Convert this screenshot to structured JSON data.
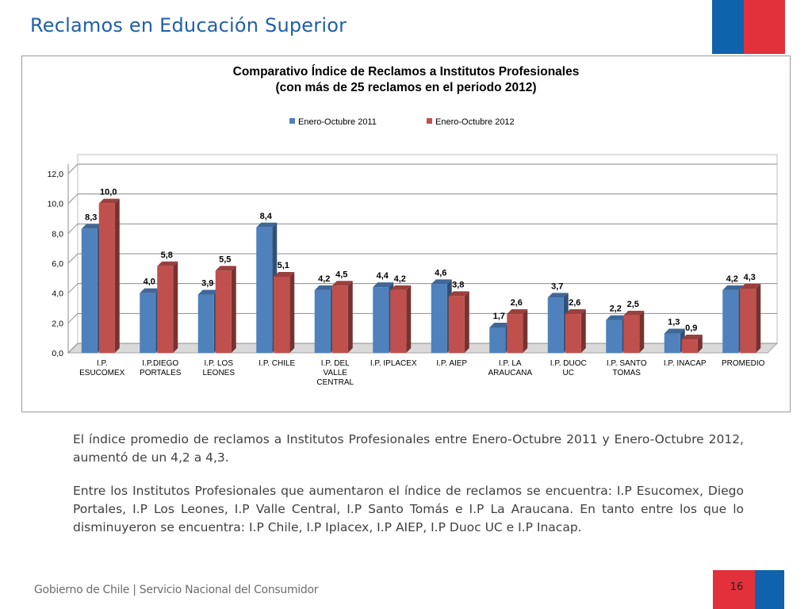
{
  "slide": {
    "title": "Reclamos en Educación Superior",
    "paragraph1": "El índice promedio de reclamos a Institutos Profesionales entre Enero-Octubre 2011 y Enero-Octubre 2012, aumentó de un 4,2 a 4,3.",
    "paragraph2": "Entre los Institutos Profesionales que aumentaron el índice de reclamos se encuentra: I.P Esucomex, Diego Portales, I.P Los Leones, I.P Valle Central, I.P Santo Tomás e I.P La Araucana. En tanto entre los que lo disminuyeron se encuentra: I.P Chile, I.P Iplacex, I.P AIEP, I.P Duoc UC e I.P Inacap.",
    "footer": "Gobierno de Chile | Servicio Nacional del Consumidor",
    "page_number": "16"
  },
  "colors": {
    "blue_flag": "#0f62ac",
    "red_flag": "#e2313b",
    "title": "#1f5fa8"
  },
  "chart_data": {
    "type": "bar",
    "title": "Comparativo Índice de Reclamos a Institutos Profesionales",
    "subtitle": "(con más de 25 reclamos en el periodo 2012)",
    "categories": [
      [
        "I.P.",
        "ESUCOMEX"
      ],
      [
        "I.P.DIEGO",
        "PORTALES"
      ],
      [
        "I.P. LOS",
        "LEONES"
      ],
      [
        "I.P. CHILE"
      ],
      [
        "I.P. DEL",
        "VALLE",
        "CENTRAL"
      ],
      [
        "I.P. IPLACEX"
      ],
      [
        "I.P. AIEP"
      ],
      [
        "I.P. LA",
        "ARAUCANA"
      ],
      [
        "I.P. DUOC",
        "UC"
      ],
      [
        "I.P. SANTO",
        "TOMAS"
      ],
      [
        "I.P. INACAP"
      ],
      [
        "PROMEDIO"
      ]
    ],
    "series": [
      {
        "name": "Enero-Octubre 2011",
        "color": "#4f81bd",
        "values": [
          8.3,
          4.0,
          3.9,
          8.4,
          4.2,
          4.4,
          4.6,
          1.7,
          3.7,
          2.2,
          1.3,
          4.2
        ],
        "labels": [
          "8,3",
          "4,0",
          "3,9",
          "8,4",
          "4,2",
          "4,4",
          "4,6",
          "1,7",
          "3,7",
          "2,2",
          "1,3",
          "4,2"
        ]
      },
      {
        "name": "Enero-Octubre 2012",
        "color": "#c0504d",
        "values": [
          10.0,
          5.8,
          5.5,
          5.1,
          4.5,
          4.2,
          3.8,
          2.6,
          2.6,
          2.5,
          0.9,
          4.3
        ],
        "labels": [
          "10,0",
          "5,8",
          "5,5",
          "5,1",
          "4,5",
          "4,2",
          "3,8",
          "2,6",
          "2,6",
          "2,5",
          "0,9",
          "4,3"
        ]
      }
    ],
    "yticks": [
      "0,0",
      "2,0",
      "4,0",
      "6,0",
      "8,0",
      "10,0",
      "12,0"
    ],
    "ylim": [
      0,
      12
    ],
    "grid": true,
    "legend_position": "top"
  }
}
